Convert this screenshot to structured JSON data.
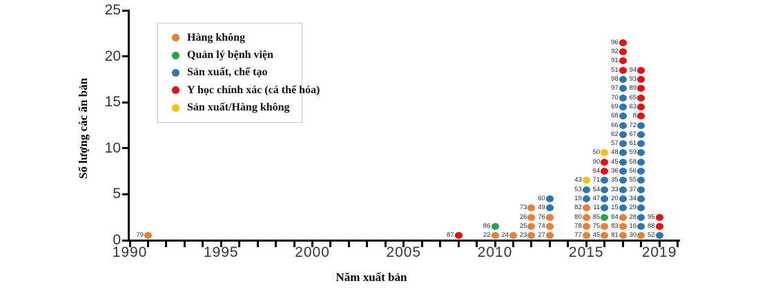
{
  "axes": {
    "x": {
      "label": "Năm xuất bản",
      "range": [
        1990,
        2020
      ],
      "tick_step_years": 1,
      "tick_labels": [
        1990,
        1995,
        2000,
        2005,
        2010,
        2015,
        2019
      ]
    },
    "y": {
      "label": "Số lượng các ấn bản",
      "range": [
        0,
        25
      ],
      "tick_labels": [
        0,
        5,
        10,
        15,
        20,
        25
      ]
    }
  },
  "legend": {
    "position": "top-left-inside-plot",
    "items": [
      {
        "key": "aviation",
        "label": "Hàng không",
        "color": "#ED7D31"
      },
      {
        "key": "hospital-management",
        "label": "Quản lý bệnh viện",
        "color": "#22A64D"
      },
      {
        "key": "manufacturing",
        "label": "Sản xuất, chế tạo",
        "color": "#2E75B6"
      },
      {
        "key": "precision-medicine",
        "label": "Y học chính xác (cá thể hóa)",
        "color": "#F10A0A"
      },
      {
        "key": "manufacturing-aviation",
        "label": "Sản xuất/Hàng không",
        "color": "#FFC000"
      }
    ]
  },
  "chart_data": {
    "type": "scatter",
    "title": "",
    "xlabel": "Năm xuất bản",
    "ylabel": "Số lượng các ấn bản",
    "xlim": [
      1990,
      2020
    ],
    "ylim": [
      0,
      25
    ],
    "grid": false,
    "note": "Stacked dot plot: each dot is one publication, labeled with its reference number; stacks listed bottom to top; dot centers sit at count - 0.5.",
    "columns": [
      {
        "year": 1991,
        "count": 1,
        "stack": [
          {
            "id": "79",
            "category": "aviation"
          }
        ]
      },
      {
        "year": 2008,
        "count": 1,
        "stack": [
          {
            "id": "87",
            "category": "precision-medicine"
          }
        ]
      },
      {
        "year": 2010,
        "count": 2,
        "stack": [
          {
            "id": "22",
            "category": "aviation"
          },
          {
            "id": "86",
            "category": "hospital-management"
          }
        ]
      },
      {
        "year": 2011,
        "count": 1,
        "stack": [
          {
            "id": "24",
            "category": "aviation"
          }
        ]
      },
      {
        "year": 2012,
        "count": 4,
        "stack": [
          {
            "id": "23",
            "category": "aviation"
          },
          {
            "id": "25",
            "category": "aviation"
          },
          {
            "id": "26",
            "category": "aviation"
          },
          {
            "id": "73",
            "category": "aviation"
          }
        ]
      },
      {
        "year": 2013,
        "count": 5,
        "stack": [
          {
            "id": "27",
            "category": "aviation"
          },
          {
            "id": "74",
            "category": "aviation"
          },
          {
            "id": "76",
            "category": "aviation"
          },
          {
            "id": "49",
            "category": "manufacturing"
          },
          {
            "id": "60",
            "category": "manufacturing"
          }
        ]
      },
      {
        "year": 2015,
        "count": 7,
        "stack": [
          {
            "id": "77",
            "category": "aviation"
          },
          {
            "id": "78",
            "category": "aviation"
          },
          {
            "id": "80",
            "category": "aviation"
          },
          {
            "id": "82",
            "category": "aviation"
          },
          {
            "id": "19",
            "category": "manufacturing"
          },
          {
            "id": "53",
            "category": "manufacturing"
          },
          {
            "id": "43",
            "category": "manufacturing-aviation"
          }
        ]
      },
      {
        "year": 2016,
        "count": 10,
        "stack": [
          {
            "id": "45",
            "category": "aviation"
          },
          {
            "id": "75",
            "category": "aviation"
          },
          {
            "id": "85",
            "category": "hospital-management"
          },
          {
            "id": "11",
            "category": "manufacturing"
          },
          {
            "id": "47",
            "category": "manufacturing"
          },
          {
            "id": "54",
            "category": "manufacturing"
          },
          {
            "id": "71",
            "category": "manufacturing"
          },
          {
            "id": "64",
            "category": "precision-medicine"
          },
          {
            "id": "90",
            "category": "precision-medicine"
          },
          {
            "id": "50",
            "category": "manufacturing-aviation"
          }
        ]
      },
      {
        "year": 2017,
        "count": 22,
        "stack": [
          {
            "id": "81",
            "category": "aviation"
          },
          {
            "id": "83",
            "category": "aviation"
          },
          {
            "id": "84",
            "category": "aviation"
          },
          {
            "id": "15",
            "category": "manufacturing"
          },
          {
            "id": "20",
            "category": "manufacturing"
          },
          {
            "id": "33",
            "category": "manufacturing"
          },
          {
            "id": "35",
            "category": "manufacturing"
          },
          {
            "id": "36",
            "category": "manufacturing"
          },
          {
            "id": "45",
            "category": "manufacturing"
          },
          {
            "id": "48",
            "category": "manufacturing"
          },
          {
            "id": "57",
            "category": "manufacturing"
          },
          {
            "id": "62",
            "category": "manufacturing"
          },
          {
            "id": "66",
            "category": "manufacturing"
          },
          {
            "id": "68",
            "category": "manufacturing"
          },
          {
            "id": "69",
            "category": "manufacturing"
          },
          {
            "id": "70",
            "category": "manufacturing"
          },
          {
            "id": "97",
            "category": "manufacturing"
          },
          {
            "id": "98",
            "category": "manufacturing"
          },
          {
            "id": "51",
            "category": "precision-medicine"
          },
          {
            "id": "91",
            "category": "precision-medicine"
          },
          {
            "id": "92",
            "category": "precision-medicine"
          },
          {
            "id": "96",
            "category": "precision-medicine"
          }
        ]
      },
      {
        "year": 2018,
        "count": 19,
        "stack": [
          {
            "id": "30",
            "category": "aviation"
          },
          {
            "id": "16",
            "category": "manufacturing"
          },
          {
            "id": "28",
            "category": "manufacturing"
          },
          {
            "id": "29",
            "category": "manufacturing"
          },
          {
            "id": "34",
            "category": "manufacturing"
          },
          {
            "id": "37",
            "category": "manufacturing"
          },
          {
            "id": "55",
            "category": "manufacturing"
          },
          {
            "id": "56",
            "category": "manufacturing"
          },
          {
            "id": "58",
            "category": "manufacturing"
          },
          {
            "id": "59",
            "category": "manufacturing"
          },
          {
            "id": "61",
            "category": "manufacturing"
          },
          {
            "id": "67",
            "category": "manufacturing"
          },
          {
            "id": "72",
            "category": "manufacturing"
          },
          {
            "id": "8",
            "category": "precision-medicine"
          },
          {
            "id": "63",
            "category": "precision-medicine"
          },
          {
            "id": "65",
            "category": "precision-medicine"
          },
          {
            "id": "89",
            "category": "precision-medicine"
          },
          {
            "id": "93",
            "category": "precision-medicine"
          },
          {
            "id": "94",
            "category": "precision-medicine"
          }
        ]
      },
      {
        "year": 2019,
        "count": 3,
        "stack": [
          {
            "id": "52",
            "category": "manufacturing"
          },
          {
            "id": "88",
            "category": "precision-medicine"
          },
          {
            "id": "95",
            "category": "precision-medicine"
          }
        ]
      }
    ]
  }
}
